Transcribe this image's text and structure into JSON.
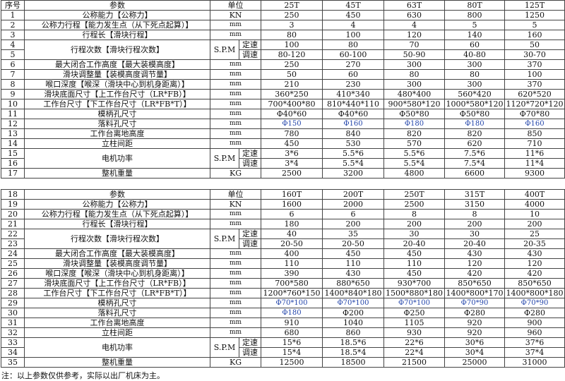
{
  "header": {
    "no": "序号",
    "param": "参数",
    "unit": "单位"
  },
  "tables": [
    {
      "models": [
        "25T",
        "45T",
        "63T",
        "80T",
        "125T"
      ],
      "rows": [
        {
          "no": "1",
          "param": "公称能力【公称力】",
          "unit": "KN",
          "values": [
            "250",
            "450",
            "630",
            "800",
            "1250"
          ]
        },
        {
          "no": "2",
          "param": "公称力行程【能力发生点（从下死点起算）】",
          "unit": "mm",
          "values": [
            "3",
            "4",
            "4",
            "5",
            "5"
          ]
        },
        {
          "no": "3",
          "param": "行程长【滑块行程】",
          "unit": "mm",
          "values": [
            "80",
            "100",
            "120",
            "140",
            "160"
          ]
        },
        {
          "no": "4",
          "param": "行程次数【滑块行程次数】",
          "unit": "S.P.M",
          "sub": "定速",
          "values": [
            "100",
            "80",
            "70",
            "60",
            "50"
          ]
        },
        {
          "no": "5",
          "sub": "调速",
          "values": [
            "80-120",
            "60-100",
            "50-90",
            "40-80",
            "30-70"
          ]
        },
        {
          "no": "6",
          "param": "最大闭合工作高度【最大装模高度】",
          "unit": "mm",
          "values": [
            "250",
            "270",
            "300",
            "300",
            "370"
          ]
        },
        {
          "no": "7",
          "param": "滑块调整量【装模高度调节量】",
          "unit": "mm",
          "values": [
            "50",
            "60",
            "80",
            "80",
            "100"
          ]
        },
        {
          "no": "8",
          "param": "喉口深度【喉深（滑块中心到机身距离）】",
          "unit": "mm",
          "values": [
            "210",
            "230",
            "300",
            "300",
            "370"
          ]
        },
        {
          "no": "9",
          "param": "滑块底面尺寸【上工作台尺寸（LR*FB）】",
          "unit": "mm",
          "values": [
            "360*250",
            "410*340",
            "480*400",
            "560*420",
            "620*520"
          ]
        },
        {
          "no": "10",
          "param": "工作台尺寸【下工作台尺寸（LR*FB*T）】",
          "unit": "mm",
          "values": [
            "700*400*80",
            "810*440*110",
            "900*580*120",
            "1000*580*120",
            "1120*720*120"
          ]
        },
        {
          "no": "11",
          "param": "模柄孔尺寸",
          "unit": "mm",
          "values": [
            "Φ40*60",
            "Φ40*60",
            "Φ50*80",
            "Φ50*80",
            "Φ70*80"
          ]
        },
        {
          "no": "12",
          "param": "落料孔尺寸",
          "unit": "mm",
          "blue": [
            0,
            1,
            2,
            3,
            4
          ],
          "values": [
            "Φ150",
            "Φ160",
            "Φ180",
            "Φ180",
            "Φ160"
          ]
        },
        {
          "no": "13",
          "param": "工作台离地高度",
          "unit": "mm",
          "values": [
            "780",
            "840",
            "820",
            "820",
            "850"
          ]
        },
        {
          "no": "14",
          "param": "立柱间距",
          "unit": "mm",
          "values": [
            "450",
            "530",
            "570",
            "620",
            "710"
          ]
        },
        {
          "no": "15",
          "param": "电机功率",
          "unit": "S.P.M",
          "sub": "定速",
          "values": [
            "3*6",
            "5.5*6",
            "5.5*6",
            "7.5*6",
            "11*6"
          ]
        },
        {
          "no": "16",
          "sub": "调速",
          "values": [
            "3*4",
            "5.5*4",
            "5.5*4",
            "7.5*4",
            "11*4"
          ]
        },
        {
          "no": "17",
          "param": "整机重量",
          "unit": "KG",
          "values": [
            "2500",
            "3200",
            "4800",
            "6600",
            "9300"
          ]
        }
      ]
    },
    {
      "header_no": "18",
      "models": [
        "160T",
        "200T",
        "250T",
        "315T",
        "400T"
      ],
      "rows": [
        {
          "no": "19",
          "param": "公称能力【公称力】",
          "unit": "KN",
          "values": [
            "1600",
            "2000",
            "2500",
            "3150",
            "4000"
          ]
        },
        {
          "no": "20",
          "param": "公称力行程【能力发生点（从下死点起算）】",
          "unit": "mm",
          "values": [
            "6",
            "6",
            "8",
            "8",
            "10"
          ]
        },
        {
          "no": "21",
          "param": "行程长【滑块行程】",
          "unit": "mm",
          "values": [
            "180",
            "200",
            "200",
            "200",
            "200"
          ]
        },
        {
          "no": "22",
          "param": "行程次数【滑块行程次数】",
          "unit": "S.P.M",
          "sub": "定速",
          "values": [
            "40",
            "35",
            "30",
            "30",
            "25"
          ]
        },
        {
          "no": "23",
          "sub": "调速",
          "values": [
            "20-50",
            "20-50",
            "20-40",
            "20-40",
            "20-35"
          ]
        },
        {
          "no": "24",
          "param": "最大闭合工作高度【最大装模高度】",
          "unit": "mm",
          "values": [
            "400",
            "450",
            "450",
            "430",
            "430"
          ]
        },
        {
          "no": "25",
          "param": "滑块调整量【装模高度调节量】",
          "unit": "mm",
          "values": [
            "110",
            "110",
            "110",
            "120",
            "120"
          ]
        },
        {
          "no": "26",
          "param": "喉口深度【喉深（滑块中心到机身距离）】",
          "unit": "mm",
          "values": [
            "390",
            "430",
            "450",
            "420",
            "420"
          ]
        },
        {
          "no": "27",
          "param": "滑块底面尺寸【上工作台尺寸（LR*FB）】",
          "unit": "mm",
          "values": [
            "700*580",
            "880*650",
            "930*700",
            "850*650",
            "850*650"
          ]
        },
        {
          "no": "28",
          "param": "工作台尺寸【下工作台尺寸（LR*FB*T）】",
          "unit": "mm",
          "values": [
            "1200*760*150",
            "1400*840*180",
            "1500*880*180",
            "1400*800*170",
            "1400*800*180"
          ]
        },
        {
          "no": "29",
          "param": "模柄孔尺寸",
          "unit": "mm",
          "blue": [
            0,
            1,
            2,
            3,
            4
          ],
          "values": [
            "Φ70*100",
            "Φ70*100",
            "Φ70*100",
            "Φ70*90",
            "Φ70*90"
          ]
        },
        {
          "no": "30",
          "param": "落料孔尺寸",
          "unit": "mm",
          "blue": [
            0
          ],
          "values": [
            "Φ180",
            "Φ200",
            "Φ250",
            "Φ280",
            "Φ280"
          ]
        },
        {
          "no": "31",
          "param": "工作台离地高度",
          "unit": "mm",
          "values": [
            "910",
            "1040",
            "1105",
            "920",
            "900"
          ]
        },
        {
          "no": "32",
          "param": "立柱间距",
          "unit": "mm",
          "values": [
            "680",
            "860",
            "930",
            "920",
            "960"
          ]
        },
        {
          "no": "33",
          "param": "电机功率",
          "unit": "S.P.M",
          "sub": "定速",
          "values": [
            "15*6",
            "18.5*6",
            "22*6",
            "30*6",
            "37*6"
          ]
        },
        {
          "no": "34",
          "sub": "调速",
          "values": [
            "15*4",
            "18.5*4",
            "22*4",
            "30*4",
            "37*4"
          ]
        },
        {
          "no": "35",
          "param": "整机重量",
          "unit": "KG",
          "values": [
            "12500",
            "18500",
            "21500",
            "25000",
            "31000"
          ]
        }
      ]
    }
  ],
  "note": "注：以上参数仅供参考，实际以出厂机床为主。"
}
